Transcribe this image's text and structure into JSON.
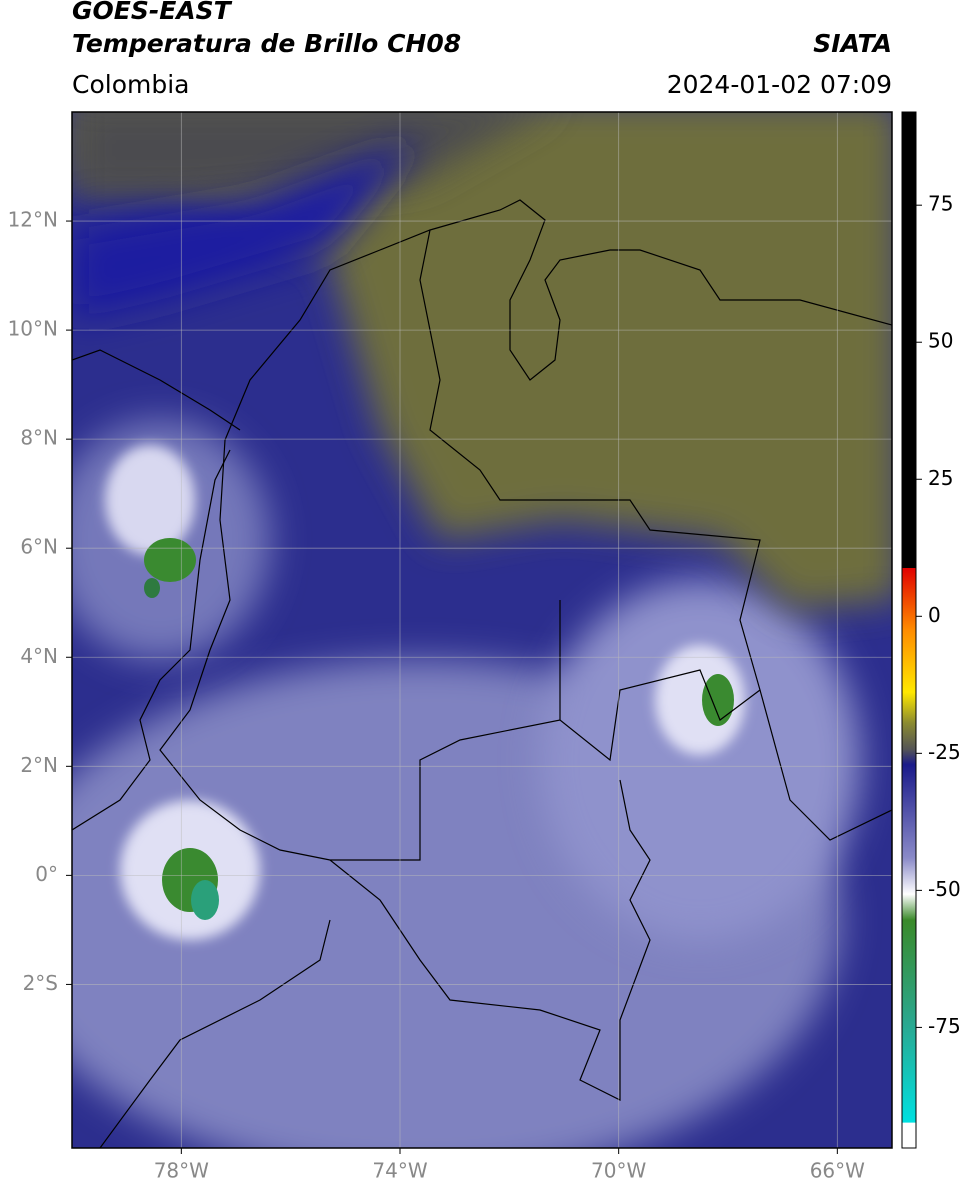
{
  "header": {
    "title": "GOES-EAST",
    "subtitle": "Temperatura de Brillo CH08",
    "region": "Colombia",
    "source": "SIATA",
    "datetime": "2024-01-02 07:09"
  },
  "map": {
    "lonlim": [
      -80,
      -65
    ],
    "latlim": [
      -5,
      14
    ],
    "lon_ticks": [
      {
        "value": -78,
        "label": "78°W"
      },
      {
        "value": -74,
        "label": "74°W"
      },
      {
        "value": -70,
        "label": "70°W"
      },
      {
        "value": -66,
        "label": "66°W"
      }
    ],
    "lat_ticks": [
      {
        "value": 12,
        "label": "12°N"
      },
      {
        "value": 10,
        "label": "10°N"
      },
      {
        "value": 8,
        "label": "8°N"
      },
      {
        "value": 6,
        "label": "6°N"
      },
      {
        "value": 4,
        "label": "4°N"
      },
      {
        "value": 2,
        "label": "2°N"
      },
      {
        "value": 0,
        "label": "0°"
      },
      {
        "value": -2,
        "label": "2°S"
      }
    ],
    "grid": true
  },
  "colorbar": {
    "lim": [
      -97,
      92
    ],
    "ticks": [
      75,
      50,
      25,
      0,
      -25,
      -50,
      -75
    ]
  }
}
